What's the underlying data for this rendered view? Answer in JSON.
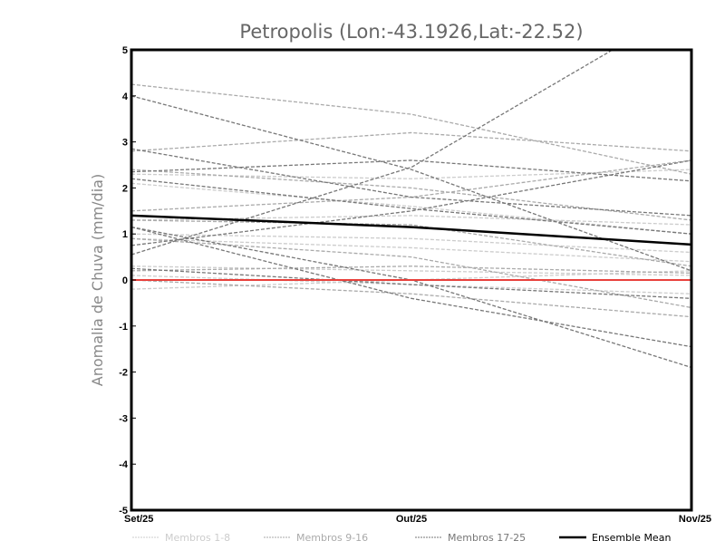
{
  "chart_data": {
    "type": "line",
    "title": "Petropolis (Lon:-43.1926,Lat:-22.52)",
    "xlabel": "",
    "ylabel": "Anomalia de Chuva (mm/dia)",
    "categories": [
      "Set/25",
      "Out/25",
      "Nov/25"
    ],
    "ylim": [
      -5,
      5
    ],
    "yticks": [
      "-5",
      "-4",
      "-3",
      "-2",
      "-1",
      "0",
      "1",
      "2",
      "3",
      "4",
      "5"
    ],
    "grid": false,
    "zero_line_color": "#e8413c",
    "groups": [
      {
        "name": "Membros 1-8",
        "color": "#cccccc",
        "series": [
          [
            2.1,
            1.6,
            1.0
          ],
          [
            1.0,
            0.9,
            0.6
          ],
          [
            0.3,
            0.2,
            0.1
          ],
          [
            -0.2,
            0.0,
            0.2
          ],
          [
            1.3,
            1.4,
            1.2
          ],
          [
            0.9,
            0.7,
            0.4
          ],
          [
            0.1,
            -0.1,
            -0.3
          ],
          [
            2.3,
            2.2,
            2.4
          ]
        ]
      },
      {
        "name": "Membros 9-16",
        "color": "#aaaaaa",
        "series": [
          [
            4.25,
            3.6,
            2.3
          ],
          [
            2.8,
            3.2,
            2.8
          ],
          [
            2.4,
            2.0,
            1.3
          ],
          [
            1.3,
            1.2,
            0.3
          ],
          [
            0.2,
            0.3,
            0.15
          ],
          [
            0.9,
            0.5,
            -0.6
          ],
          [
            1.5,
            1.8,
            2.6
          ],
          [
            0.0,
            -0.3,
            -0.8
          ]
        ]
      },
      {
        "name": "Membros 17-25",
        "color": "#777777",
        "series": [
          [
            4.0,
            2.4,
            0.2
          ],
          [
            0.55,
            2.45,
            6.0
          ],
          [
            2.85,
            1.8,
            1.4
          ],
          [
            1.15,
            -0.4,
            -1.45
          ],
          [
            2.2,
            1.55,
            1.0
          ],
          [
            2.35,
            2.6,
            2.15
          ],
          [
            0.75,
            1.5,
            2.6
          ],
          [
            1.15,
            0.0,
            -1.9
          ],
          [
            0.25,
            -0.1,
            -0.4
          ]
        ]
      }
    ],
    "ensemble_mean": {
      "name": "Ensemble Mean",
      "color": "#000000",
      "values": [
        1.4,
        1.15,
        0.77
      ]
    },
    "legend_position": "bottom"
  }
}
